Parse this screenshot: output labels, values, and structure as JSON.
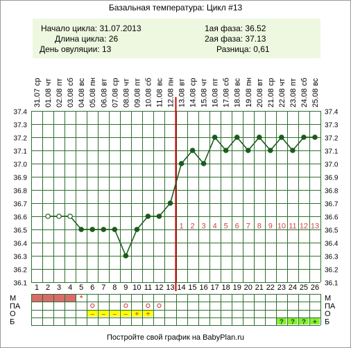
{
  "title": "Базальная температура: Цикл #13",
  "stats": {
    "cycle_start": "Начало цикла: 31.07.2013",
    "cycle_length": "Длина цикла: 26",
    "ovulation_day": "День овуляции: 13",
    "phase1": "1ая фаза: 36.52",
    "phase2": "2ая фаза: 37.13",
    "difference": "Разница: 0,61"
  },
  "footer": "Постройте свой график на BabyPlan.ru",
  "colors": {
    "line": "#1a5c1a",
    "ovulation_line": "#cc0000",
    "phase_numbers": "#cc4444",
    "grid": "#2e6e2e",
    "stats_bg": "#eef7e0",
    "menses": "#d96b6b",
    "marker_yellow": "#ffff00",
    "marker_green": "#88ee33"
  },
  "chart_data": {
    "type": "line",
    "title": "Базальная температура: Цикл #13",
    "ylim": [
      36.1,
      37.4
    ],
    "y_ticks": [
      "36.1",
      "36.2",
      "36.3",
      "36.4",
      "36.5",
      "36.6",
      "36.7",
      "36.8",
      "36.9",
      "37.0",
      "37.1",
      "37.2",
      "37.3",
      "37.4"
    ],
    "days": [
      1,
      2,
      3,
      4,
      5,
      6,
      7,
      8,
      9,
      10,
      11,
      12,
      13,
      14,
      15,
      16,
      17,
      18,
      19,
      20,
      21,
      22,
      23,
      24,
      25,
      26
    ],
    "dates": [
      "31.07",
      "01.08",
      "02.08",
      "03.08",
      "04.08",
      "05.08",
      "06.08",
      "07.08",
      "08.08",
      "09.08",
      "10.08",
      "11.08",
      "12.08",
      "13.08",
      "14.08",
      "15.08",
      "16.08",
      "17.08",
      "18.08",
      "19.08",
      "20.08",
      "21.08",
      "22.08",
      "23.08",
      "24.08",
      "25.08"
    ],
    "weekdays": [
      "ср",
      "чт",
      "пт",
      "сб",
      "вс",
      "пн",
      "вт",
      "ср",
      "чт",
      "пт",
      "сб",
      "вс",
      "пн",
      "вт",
      "ср",
      "чт",
      "пт",
      "сб",
      "вс",
      "пн",
      "вт",
      "ср",
      "чт",
      "пт",
      "сб",
      "вс"
    ],
    "series": [
      {
        "x": [
          2,
          3,
          4,
          5,
          6,
          7,
          8,
          9,
          10,
          11,
          12,
          13,
          14,
          15,
          16,
          17,
          18,
          19,
          20,
          21,
          22,
          23,
          24,
          25,
          26
        ],
        "values": [
          36.6,
          36.6,
          36.6,
          36.5,
          36.5,
          36.5,
          36.5,
          36.3,
          36.5,
          36.6,
          36.6,
          36.7,
          37.0,
          37.1,
          37.0,
          37.2,
          37.1,
          37.2,
          37.1,
          37.2,
          37.1,
          37.2,
          37.1,
          37.2,
          37.2
        ],
        "open_points": [
          2,
          3,
          4
        ]
      }
    ],
    "ovulation_day": 13,
    "phase2_labels": {
      "x": [
        14,
        15,
        16,
        17,
        18,
        19,
        20,
        21,
        22,
        23,
        24,
        25,
        26
      ],
      "labels": [
        "1",
        "2",
        "3",
        "4",
        "5",
        "6",
        "7",
        "8",
        "9",
        "10",
        "11",
        "12",
        "13"
      ],
      "y": 36.53
    },
    "bottom_rows": [
      {
        "label_left": "М",
        "label_right": "М",
        "menses_days": [
          1,
          2,
          3,
          4
        ],
        "star_days": [
          5
        ]
      },
      {
        "label_left": "ПА",
        "label_right": "ПА",
        "circle_days": [
          6,
          9,
          11,
          12
        ]
      },
      {
        "label_left": "О",
        "label_right": "О",
        "marks": [
          {
            "day": 6,
            "text": "–"
          },
          {
            "day": 7,
            "text": "–"
          },
          {
            "day": 8,
            "text": "–"
          },
          {
            "day": 9,
            "text": "–"
          },
          {
            "day": 10,
            "text": "+"
          },
          {
            "day": 11,
            "text": "+"
          }
        ]
      },
      {
        "label_left": "Б",
        "label_right": "Б",
        "marks": [
          {
            "day": 23,
            "text": "?"
          },
          {
            "day": 24,
            "text": "?"
          },
          {
            "day": 25,
            "text": "?"
          },
          {
            "day": 26,
            "text": "+"
          }
        ]
      }
    ]
  }
}
